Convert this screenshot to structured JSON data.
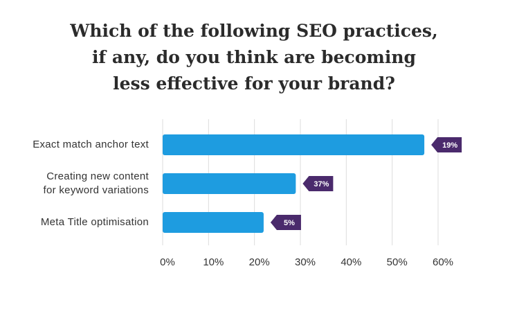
{
  "chart_data": {
    "type": "bar",
    "orientation": "horizontal",
    "title": "Which of the following SEO practices,\nif any, do you think are becoming\nless effective for your brand?",
    "categories": [
      "Exact match anchor text",
      "Creating new content\nfor keyword variations",
      "Meta Title optimisation"
    ],
    "values": [
      57,
      29,
      22
    ],
    "callouts": [
      "19%",
      "37%",
      "5%"
    ],
    "color": "#1e9ce0",
    "callout_color": "#4a2a6c",
    "xlim": [
      0,
      60
    ],
    "xticks": [
      {
        "value": 0,
        "label": "0%"
      },
      {
        "value": 10,
        "label": "10%"
      },
      {
        "value": 20,
        "label": "20%"
      },
      {
        "value": 30,
        "label": "30%"
      },
      {
        "value": 40,
        "label": "40%"
      },
      {
        "value": 50,
        "label": "50%"
      },
      {
        "value": 60,
        "label": "60%"
      }
    ],
    "grid": true
  }
}
